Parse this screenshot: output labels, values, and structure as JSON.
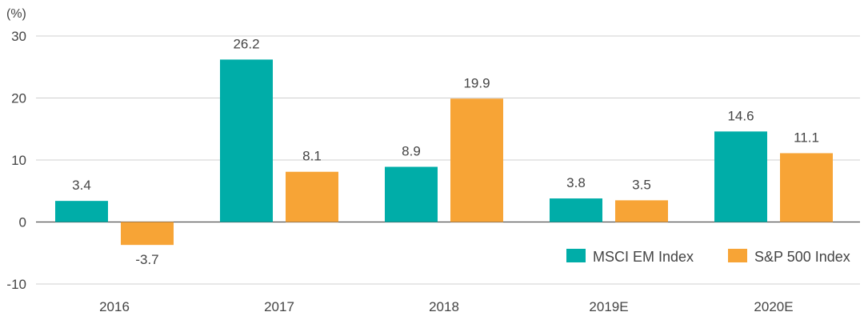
{
  "chart_data": {
    "type": "bar",
    "unit_label": "(%)",
    "categories": [
      "2016",
      "2017",
      "2018",
      "2019E",
      "2020E"
    ],
    "series": [
      {
        "name": "MSCI EM Index",
        "color": "#00ada8",
        "values": [
          3.4,
          26.2,
          8.9,
          3.8,
          14.6
        ],
        "labels": [
          "3.4",
          "26.2",
          "8.9",
          "3.8",
          "14.6"
        ]
      },
      {
        "name": "S&P 500 Index",
        "color": "#f7a436",
        "values": [
          -3.7,
          8.1,
          19.9,
          3.5,
          11.1
        ],
        "labels": [
          "-3.7",
          "8.1",
          "19.9",
          "3.5",
          "11.1"
        ]
      }
    ],
    "ylim": [
      -10,
      30
    ],
    "yticks": [
      30,
      20,
      10,
      0,
      -10
    ],
    "ytick_labels": [
      "30",
      "20",
      "10",
      "0",
      "-10"
    ],
    "grid": true,
    "legend_position": "bottom-right"
  }
}
